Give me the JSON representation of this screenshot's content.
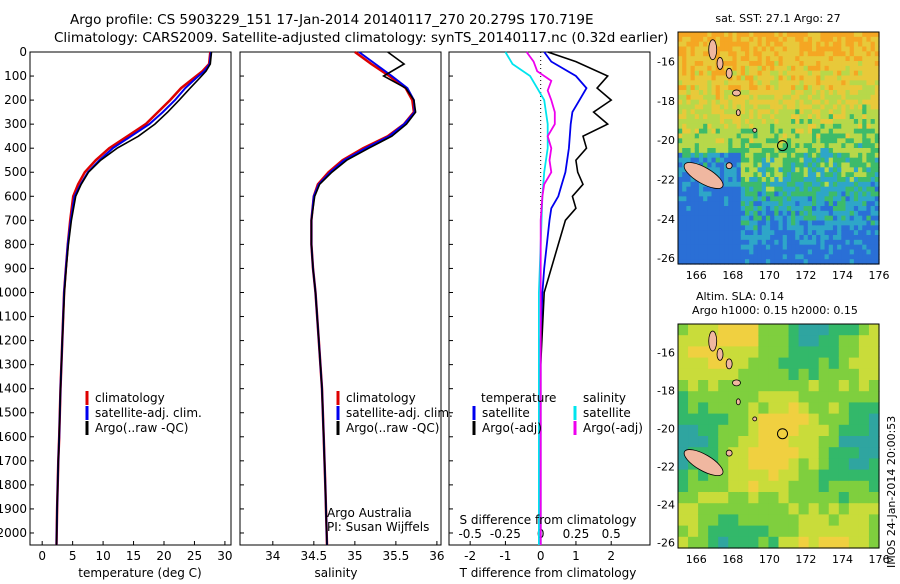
{
  "header": {
    "line1": "Argo profile: CS 5903229_151 17-Jan-2014 20140117_270 20.279S 170.719E",
    "line2": "Climatology: CARS2009. Satellite-adjusted climatology: synTS_20140117.nc (0.32d earlier)"
  },
  "colors": {
    "clim": "#dd0000",
    "sat": "#0000ee",
    "argo": "#000000",
    "sat_s": "#00e5ee",
    "argo_s": "#ee00ee"
  },
  "depth_ticks": [
    0,
    100,
    200,
    300,
    400,
    500,
    600,
    700,
    800,
    900,
    1000,
    1100,
    1200,
    1300,
    1400,
    1500,
    1600,
    1700,
    1800,
    1900,
    2000
  ],
  "panels": {
    "temperature": {
      "xlabel": "temperature (deg C)",
      "xticks": [
        0,
        5,
        10,
        15,
        20,
        25,
        30
      ],
      "xlim": [
        -2,
        31
      ],
      "legend": [
        "climatology",
        "satellite-adj. clim.",
        "Argo(..raw -QC)"
      ]
    },
    "salinity": {
      "xlabel": "salinity",
      "xticks": [
        34,
        34.5,
        35,
        35.5,
        36
      ],
      "xlim": [
        33.6,
        36.05
      ],
      "legend": [
        "climatology",
        "satellite-adj. clim.",
        "Argo(..raw -QC)"
      ],
      "note1": "Argo Australia",
      "note2": "PI: Susan Wijffels"
    },
    "difference": {
      "t_ticks": [
        -2,
        -1,
        0,
        1,
        2
      ],
      "s_ticks": [
        "-0.5",
        "-0.25",
        "0",
        "0.25",
        "0.5"
      ],
      "xlim": [
        -2.6,
        3.1
      ],
      "xlabel_top": "S difference from climatology",
      "xlabel_bottom": "T difference from climatology",
      "legend_t_title": "temperature",
      "legend_s_title": "salinity",
      "legend_t": [
        "satellite",
        "Argo(-adj)"
      ],
      "legend_s": [
        "satellite",
        "Argo(-adj)"
      ]
    }
  },
  "maps": {
    "sst_title": "sat. SST: 27.1 Argo: 27",
    "sla_title1": "Altim. SLA: 0.14",
    "sla_title2": "Argo h1000: 0.15 h2000: 0.15",
    "lon_ticks": [
      166,
      168,
      170,
      172,
      174,
      176
    ],
    "lat_ticks": [
      -16,
      -18,
      -20,
      -22,
      -24,
      -26
    ],
    "lon_range": [
      165,
      176
    ],
    "lat_range": [
      -14.5,
      -26.3
    ],
    "float_lon": 170.719,
    "float_lat": -20.279
  },
  "footer": "IMOS 24-Jan-2014 20:00:53",
  "chart_data": [
    {
      "type": "line",
      "title": "",
      "xlabel": "temperature (deg C)",
      "ylabel": "",
      "ylim": [
        2050,
        0
      ],
      "series": [
        {
          "name": "climatology",
          "x": [
            27.6,
            27.4,
            26.3,
            24.8,
            22.8,
            21.0,
            19.0,
            17.0,
            14.0,
            11.0,
            8.8,
            7.0,
            5.9,
            5.1,
            4.6,
            4.2,
            3.9,
            3.6,
            3.3,
            3.0,
            2.8,
            2.65,
            2.55,
            2.45,
            2.35
          ],
          "y": [
            0,
            50,
            80,
            110,
            150,
            200,
            250,
            300,
            350,
            400,
            450,
            500,
            550,
            600,
            700,
            800,
            900,
            1000,
            1200,
            1400,
            1600,
            1700,
            1800,
            1900,
            2050
          ]
        },
        {
          "name": "satellite-adj. clim.",
          "x": [
            27.7,
            27.5,
            26.6,
            25.2,
            23.5,
            21.8,
            19.8,
            17.6,
            14.6,
            11.6,
            9.4,
            7.5,
            6.3,
            5.3,
            4.7,
            4.2,
            3.9,
            3.6,
            3.3,
            3.0,
            2.8,
            2.65,
            2.55,
            2.45,
            2.35
          ],
          "y": [
            0,
            50,
            80,
            110,
            150,
            200,
            250,
            300,
            350,
            400,
            450,
            500,
            550,
            600,
            700,
            800,
            900,
            1000,
            1200,
            1400,
            1600,
            1700,
            1800,
            1900,
            2050
          ]
        },
        {
          "name": "Argo(..raw -QC)",
          "x": [
            27.8,
            27.6,
            26.9,
            25.8,
            24.3,
            22.5,
            20.6,
            18.5,
            15.8,
            12.3,
            9.6,
            7.6,
            6.4,
            5.5,
            4.8,
            4.3,
            3.95,
            3.65,
            3.3,
            3.0,
            2.8,
            2.65,
            2.55,
            2.45,
            2.35
          ],
          "y": [
            0,
            50,
            80,
            110,
            150,
            200,
            250,
            300,
            350,
            400,
            450,
            500,
            550,
            600,
            700,
            800,
            900,
            1000,
            1200,
            1400,
            1600,
            1700,
            1800,
            1900,
            2050
          ]
        }
      ]
    },
    {
      "type": "line",
      "title": "",
      "xlabel": "salinity",
      "ylabel": "",
      "ylim": [
        2050,
        0
      ],
      "series": [
        {
          "name": "climatology",
          "x": [
            35.0,
            35.2,
            35.42,
            35.62,
            35.7,
            35.72,
            35.6,
            35.4,
            35.1,
            34.85,
            34.68,
            34.55,
            34.5,
            34.47,
            34.47,
            34.49,
            34.52,
            34.56,
            34.6,
            34.62,
            34.64,
            34.66
          ],
          "y": [
            0,
            50,
            100,
            150,
            200,
            250,
            300,
            350,
            400,
            450,
            500,
            550,
            600,
            700,
            800,
            900,
            1000,
            1200,
            1400,
            1600,
            1800,
            2050
          ]
        },
        {
          "name": "satellite-adj. clim.",
          "x": [
            35.05,
            35.25,
            35.45,
            35.64,
            35.72,
            35.73,
            35.6,
            35.42,
            35.13,
            34.87,
            34.7,
            34.56,
            34.5,
            34.47,
            34.47,
            34.49,
            34.52,
            34.56,
            34.6,
            34.62,
            34.64,
            34.66
          ],
          "y": [
            0,
            50,
            100,
            150,
            200,
            250,
            300,
            350,
            400,
            450,
            500,
            550,
            600,
            700,
            800,
            900,
            1000,
            1200,
            1400,
            1600,
            1800,
            2050
          ]
        },
        {
          "name": "Argo(..raw -QC)",
          "x": [
            35.4,
            35.6,
            35.35,
            35.62,
            35.72,
            35.74,
            35.63,
            35.45,
            35.17,
            34.9,
            34.72,
            34.57,
            34.51,
            34.47,
            34.47,
            34.49,
            34.52,
            34.56,
            34.6,
            34.62,
            34.64,
            34.66
          ],
          "y": [
            0,
            50,
            100,
            150,
            200,
            250,
            300,
            350,
            400,
            450,
            500,
            550,
            600,
            700,
            800,
            900,
            1000,
            1200,
            1400,
            1600,
            1800,
            2050
          ]
        }
      ]
    },
    {
      "type": "line",
      "title": "",
      "xlabel": "T difference from climatology",
      "ylabel": "",
      "ylim": [
        2050,
        0
      ],
      "series": [
        {
          "name": "temperature satellite",
          "x": [
            0.1,
            0.3,
            1.0,
            1.3,
            1.1,
            0.9,
            0.85,
            0.8,
            0.7,
            0.6,
            0.5,
            0.3,
            0.25,
            0.1,
            0.05,
            0.0,
            0.0,
            0.0,
            0.0
          ],
          "y": [
            0,
            40,
            100,
            150,
            200,
            250,
            300,
            400,
            500,
            550,
            600,
            650,
            700,
            900,
            1000,
            1200,
            1400,
            1700,
            2050
          ]
        },
        {
          "name": "temperature Argo(-adj)",
          "x": [
            0.2,
            1.0,
            1.9,
            1.6,
            2.0,
            1.5,
            1.9,
            1.2,
            1.3,
            1.0,
            1.05,
            1.2,
            0.9,
            1.0,
            0.7,
            0.5,
            0.1,
            0.0,
            0.0,
            0.0
          ],
          "y": [
            0,
            40,
            100,
            150,
            200,
            250,
            300,
            350,
            400,
            450,
            500,
            550,
            600,
            650,
            700,
            800,
            1000,
            1300,
            1700,
            2050
          ]
        },
        {
          "name": "salinity satellite",
          "x": [
            -1.0,
            -0.8,
            -0.3,
            -0.1,
            0.1,
            0.2,
            0.2,
            0.1,
            0.05,
            0.0,
            -0.05,
            -0.05,
            -0.05
          ],
          "y": [
            0,
            50,
            100,
            150,
            200,
            300,
            400,
            500,
            600,
            800,
            1000,
            1500,
            2050
          ]
        },
        {
          "name": "salinity Argo(-adj)",
          "x": [
            -0.4,
            -0.2,
            -0.1,
            0.3,
            0.2,
            0.3,
            0.4,
            0.4,
            0.2,
            0.3,
            0.25,
            0.3,
            0.1,
            0.05,
            0.0,
            0.0,
            0.0
          ],
          "y": [
            0,
            40,
            80,
            120,
            160,
            200,
            250,
            300,
            350,
            400,
            450,
            500,
            550,
            600,
            700,
            1000,
            2050
          ]
        }
      ]
    }
  ]
}
